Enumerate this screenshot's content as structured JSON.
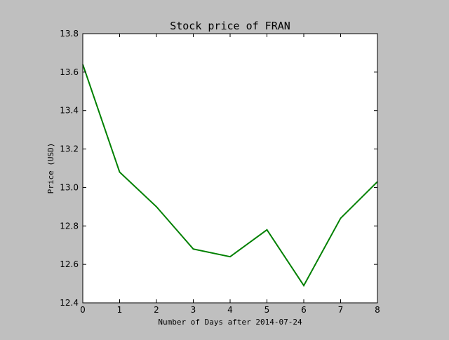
{
  "chart_data": {
    "type": "line",
    "title": "Stock price of FRAN",
    "xlabel": "Number of Days after 2014-07-24",
    "ylabel": "Price (USD)",
    "x": [
      0,
      1,
      2,
      3,
      4,
      5,
      6,
      7,
      8
    ],
    "series": [
      {
        "values": [
          13.64,
          13.08,
          12.9,
          12.68,
          12.64,
          12.78,
          12.49,
          12.84,
          13.03
        ],
        "color": "#008000"
      }
    ],
    "xlim": [
      0,
      8
    ],
    "ylim": [
      12.4,
      13.8
    ],
    "xticks": [
      "0",
      "1",
      "2",
      "3",
      "4",
      "5",
      "6",
      "7",
      "8"
    ],
    "yticks": [
      "12.4",
      "12.6",
      "12.8",
      "13.0",
      "13.2",
      "13.4",
      "13.6",
      "13.8"
    ],
    "grid": false,
    "legend": "none"
  }
}
